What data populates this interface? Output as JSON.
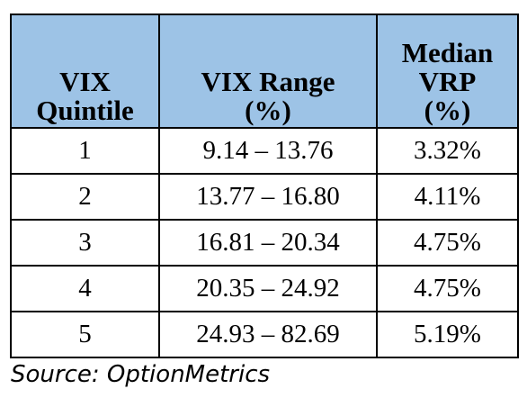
{
  "table": {
    "header": [
      [
        "VIX",
        "Quintile"
      ],
      [
        "VIX Range",
        "(%)"
      ],
      [
        "Median",
        "VRP",
        "(%)"
      ]
    ],
    "rows": [
      [
        "1",
        "9.14 – 13.76",
        "3.32%"
      ],
      [
        "2",
        "13.77 – 16.80",
        "4.11%"
      ],
      [
        "3",
        "16.81 – 20.34",
        "4.75%"
      ],
      [
        "4",
        "20.35 – 24.92",
        "4.75%"
      ],
      [
        "5",
        "24.93 – 82.69",
        "5.19%"
      ]
    ]
  },
  "source": "Source: OptionMetrics"
}
